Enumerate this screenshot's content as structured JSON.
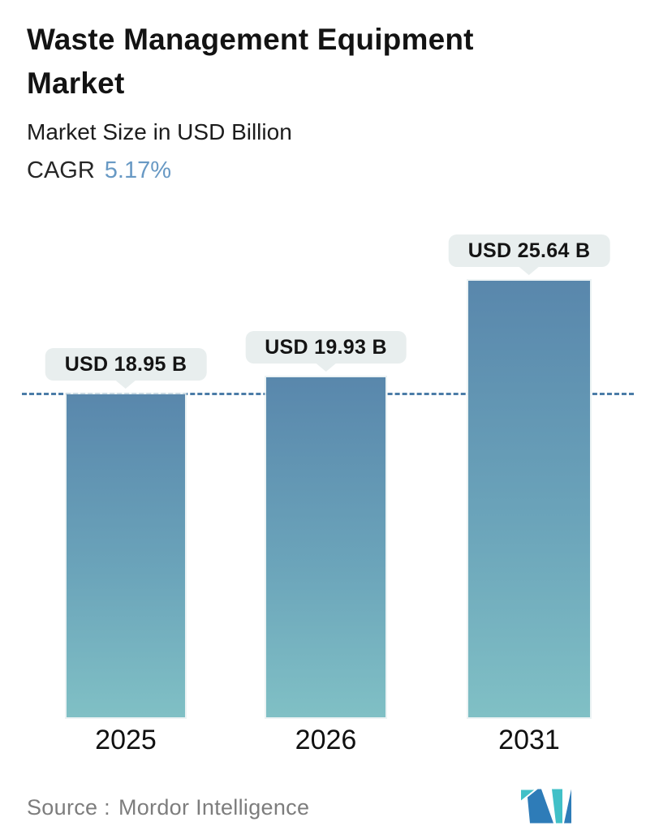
{
  "header": {
    "title": "Waste Management Equipment Market",
    "subtitle": "Market Size in USD Billion",
    "cagr_label": "CAGR",
    "cagr_value": "5.17%"
  },
  "chart_data": {
    "type": "bar",
    "categories": [
      "2025",
      "2026",
      "2031"
    ],
    "values": [
      18.95,
      19.93,
      25.64
    ],
    "value_labels": [
      "USD 18.95 B",
      "USD 19.93 B",
      "USD 25.64 B"
    ],
    "title": "Waste Management Equipment Market",
    "ylabel": "Market Size in USD Billion",
    "xlabel": "",
    "baseline": {
      "value": 18.95,
      "style": "dashed"
    },
    "legend": false,
    "gridlines": false,
    "ylim": [
      0,
      30
    ]
  },
  "footer": {
    "source_label": "Source :",
    "source_name": "Mordor Intelligence",
    "logo": "mordor-intelligence-logo"
  },
  "colors": {
    "bar_top": "#5987ac",
    "bar_bottom": "#80c0c5",
    "dashed_line": "#4b7ca7",
    "bubble_bg": "#e8eeee",
    "cagr_value": "#6899c4",
    "source_text": "#7d7d7d",
    "logo_blue": "#2e7cb8",
    "logo_teal": "#41c0c7"
  }
}
